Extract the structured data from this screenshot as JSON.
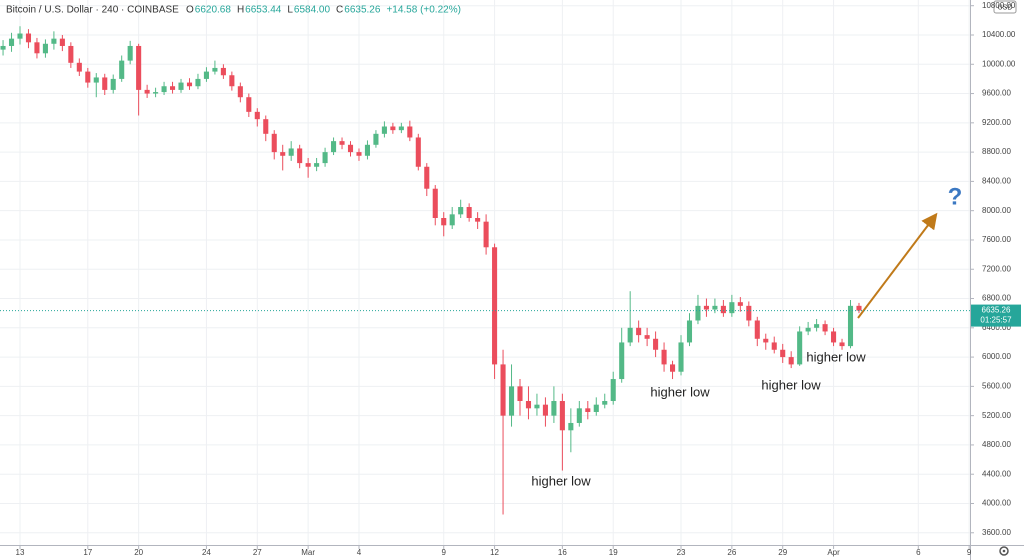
{
  "header": {
    "symbol": "Bitcoin / U.S. Dollar · 240 · COINBASE",
    "ohlc": [
      {
        "label": "O",
        "value": "6620.68"
      },
      {
        "label": "H",
        "value": "6653.44"
      },
      {
        "label": "L",
        "value": "6584.00"
      },
      {
        "label": "C",
        "value": "6635.26"
      }
    ],
    "change": "+14.58 (+0.22%)"
  },
  "currency": "USD",
  "annotations": [
    "higher low",
    "higher low",
    "higher low",
    "higher low",
    "?"
  ],
  "chart_data": {
    "type": "candlestick",
    "up_color": "#53b987",
    "down_color": "#eb4d5c",
    "grid": true,
    "last_price": 6635.26,
    "last_price_color": "#26a69a",
    "countdown": "01:25:57",
    "xlim": [
      -1.18,
      56.05
    ],
    "xticks": [
      {
        "value": 0,
        "label": "13"
      },
      {
        "value": 4,
        "label": "17"
      },
      {
        "value": 7,
        "label": "20"
      },
      {
        "value": 11,
        "label": "24"
      },
      {
        "value": 14,
        "label": "27"
      },
      {
        "value": 17,
        "label": "Mar"
      },
      {
        "value": 20,
        "label": "4"
      },
      {
        "value": 25,
        "label": "9"
      },
      {
        "value": 28,
        "label": "12"
      },
      {
        "value": 32,
        "label": "16"
      },
      {
        "value": 35,
        "label": "19"
      },
      {
        "value": 39,
        "label": "23"
      },
      {
        "value": 42,
        "label": "26"
      },
      {
        "value": 45,
        "label": "29"
      },
      {
        "value": 48,
        "label": "Apr"
      },
      {
        "value": 53,
        "label": "6"
      },
      {
        "value": 56,
        "label": "9"
      }
    ],
    "ylim": [
      3433,
      10878
    ],
    "yticks": [
      {
        "value": 3600,
        "label": "3600.00"
      },
      {
        "value": 4000,
        "label": "4000.00"
      },
      {
        "value": 4400,
        "label": "4400.00"
      },
      {
        "value": 4800,
        "label": "4800.00"
      },
      {
        "value": 5200,
        "label": "5200.00"
      },
      {
        "value": 5600,
        "label": "5600.00"
      },
      {
        "value": 6000,
        "label": "6000.00"
      },
      {
        "value": 6400,
        "label": "6400.00"
      },
      {
        "value": 6800,
        "label": "6800.00"
      },
      {
        "value": 7200,
        "label": "7200.00"
      },
      {
        "value": 7600,
        "label": "7600.00"
      },
      {
        "value": 8000,
        "label": "8000.00"
      },
      {
        "value": 8400,
        "label": "8400.00"
      },
      {
        "value": 8800,
        "label": "8800.00"
      },
      {
        "value": 9200,
        "label": "9200.00"
      },
      {
        "value": 9600,
        "label": "9600.00"
      },
      {
        "value": 10000,
        "label": "10000.00"
      },
      {
        "value": 10400,
        "label": "10400.00"
      },
      {
        "value": 10800,
        "label": "10800.00"
      }
    ],
    "x": [
      -1,
      -0.5,
      0,
      0.5,
      1,
      1.5,
      2,
      2.5,
      3,
      3.5,
      4,
      4.5,
      5,
      5.5,
      6,
      6.5,
      7,
      7.5,
      8,
      8.5,
      9,
      9.5,
      10,
      10.5,
      11,
      11.5,
      12,
      12.5,
      13,
      13.5,
      14,
      14.5,
      15,
      15.5,
      16,
      16.5,
      17,
      17.5,
      18,
      18.5,
      19,
      19.5,
      20,
      20.5,
      21,
      21.5,
      22,
      22.5,
      23,
      23.5,
      24,
      24.5,
      25,
      25.5,
      26,
      26.5,
      27,
      27.5,
      28,
      28.5,
      29,
      29.5,
      30,
      30.5,
      31,
      31.5,
      32,
      32.5,
      33,
      33.5,
      34,
      34.5,
      35,
      35.5,
      36,
      36.5,
      37,
      37.5,
      38,
      38.5,
      39,
      39.5,
      40,
      40.5,
      41,
      41.5,
      42,
      42.5,
      43,
      43.5,
      44,
      44.5,
      45,
      45.5,
      46,
      46.5,
      47,
      47.5,
      48,
      48.5,
      49,
      49.5
    ],
    "open": [
      10200,
      10250,
      10350,
      10420,
      10300,
      10150,
      10280,
      10350,
      10250,
      10020,
      9900,
      9750,
      9820,
      9650,
      9800,
      10050,
      10250,
      9650,
      9600,
      9620,
      9700,
      9650,
      9750,
      9700,
      9800,
      9900,
      9950,
      9850,
      9700,
      9550,
      9350,
      9250,
      9050,
      8800,
      8750,
      8850,
      8650,
      8600,
      8650,
      8800,
      8950,
      8900,
      8800,
      8750,
      8900,
      9050,
      9150,
      9100,
      9150,
      9000,
      8600,
      8300,
      7900,
      7800,
      7950,
      8050,
      7900,
      7850,
      7500,
      5900,
      5200,
      5600,
      5400,
      5300,
      5350,
      5200,
      5400,
      5000,
      5100,
      5300,
      5250,
      5350,
      5400,
      5700,
      6200,
      6400,
      6300,
      6250,
      6100,
      5900,
      5800,
      6200,
      6500,
      6700,
      6650,
      6700,
      6600,
      6750,
      6700,
      6500,
      6250,
      6200,
      6100,
      6000,
      5900,
      6350,
      6400,
      6450,
      6350,
      6200,
      6150,
      6700
    ],
    "high": [
      10330,
      10430,
      10520,
      10480,
      10360,
      10340,
      10450,
      10400,
      10300,
      10080,
      9950,
      9880,
      9870,
      9860,
      10120,
      10320,
      10280,
      9720,
      9680,
      9760,
      9760,
      9800,
      9810,
      9870,
      9960,
      10050,
      10000,
      9900,
      9750,
      9600,
      9400,
      9300,
      9100,
      8900,
      8950,
      8900,
      8720,
      8720,
      8860,
      9000,
      9000,
      8950,
      8850,
      8960,
      9100,
      9220,
      9200,
      9200,
      9230,
      9050,
      8650,
      8350,
      7980,
      8050,
      8150,
      8100,
      7980,
      7950,
      7550,
      6100,
      5900,
      5700,
      5600,
      5500,
      5450,
      5600,
      5500,
      5300,
      5400,
      5400,
      5450,
      5500,
      5800,
      6400,
      6900,
      6500,
      6400,
      6350,
      6200,
      5950,
      6300,
      6600,
      6850,
      6800,
      6800,
      6780,
      6850,
      6820,
      6760,
      6550,
      6320,
      6280,
      6180,
      6080,
      6420,
      6480,
      6520,
      6500,
      6400,
      6250,
      6780,
      6740
    ],
    "low": [
      10120,
      10170,
      10270,
      10220,
      10080,
      10090,
      10200,
      10180,
      9950,
      9840,
      9680,
      9550,
      9580,
      9600,
      9760,
      10000,
      9300,
      9540,
      9550,
      9580,
      9600,
      9610,
      9650,
      9660,
      9760,
      9860,
      9800,
      9640,
      9480,
      9280,
      9150,
      8950,
      8700,
      8550,
      8680,
      8580,
      8450,
      8540,
      8600,
      8760,
      8840,
      8740,
      8680,
      8700,
      8860,
      9000,
      9050,
      9060,
      8950,
      8550,
      8200,
      7800,
      7650,
      7750,
      7900,
      7850,
      7750,
      7400,
      5700,
      3850,
      5050,
      5200,
      5150,
      5200,
      5050,
      5100,
      4450,
      4700,
      5050,
      5150,
      5200,
      5300,
      5350,
      5650,
      6150,
      6200,
      6150,
      6000,
      5800,
      5700,
      5750,
      6150,
      6450,
      6550,
      6600,
      6550,
      6550,
      6620,
      6420,
      6150,
      6100,
      6050,
      5920,
      5850,
      5880,
      6300,
      6350,
      6300,
      6150,
      6100,
      6120,
      6600
    ],
    "close": [
      10250,
      10350,
      10420,
      10300,
      10150,
      10280,
      10350,
      10250,
      10020,
      9900,
      9750,
      9820,
      9650,
      9800,
      10050,
      10250,
      9650,
      9600,
      9620,
      9700,
      9650,
      9750,
      9700,
      9800,
      9900,
      9950,
      9850,
      9700,
      9550,
      9350,
      9250,
      9050,
      8800,
      8750,
      8850,
      8650,
      8600,
      8650,
      8800,
      8950,
      8900,
      8800,
      8750,
      8900,
      9050,
      9150,
      9100,
      9150,
      9000,
      8600,
      8300,
      7900,
      7800,
      7950,
      8050,
      7900,
      7850,
      7500,
      5900,
      5200,
      5600,
      5400,
      5300,
      5350,
      5200,
      5400,
      5000,
      5100,
      5300,
      5250,
      5350,
      5400,
      5700,
      6200,
      6400,
      6300,
      6250,
      6100,
      5900,
      5800,
      6200,
      6500,
      6700,
      6650,
      6700,
      6600,
      6750,
      6700,
      6500,
      6250,
      6200,
      6100,
      6000,
      5900,
      6350,
      6400,
      6450,
      6350,
      6200,
      6150,
      6700,
      6635
    ]
  }
}
